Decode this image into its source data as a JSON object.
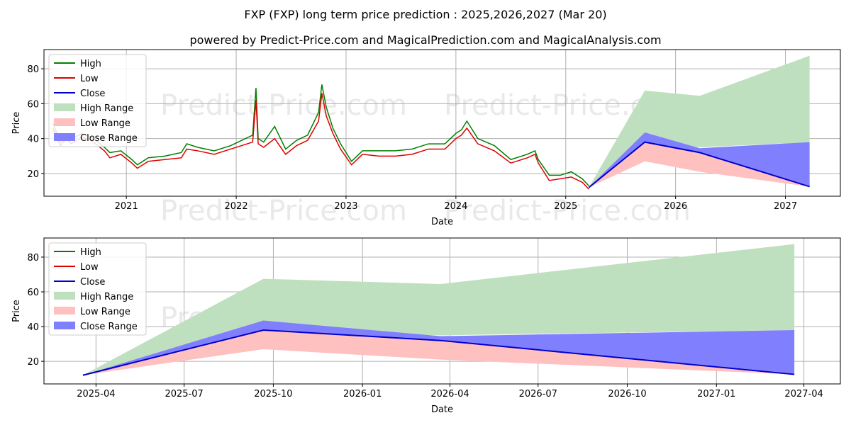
{
  "title": "FXP (FXP) long term price prediction : 2025,2026,2027 (Mar 20)",
  "subtitle": "powered by Predict-Price.com and MagicalPrediction.com and MagicalAnalysis.com",
  "watermark": "Predict-Price.com",
  "colors": {
    "high": "#008000",
    "low": "#e00000",
    "close": "#0000cc",
    "high_range": "#bfe0bf",
    "low_range": "#ffc0c0",
    "close_range": "#8080ff",
    "grid": "#b0b0b0"
  },
  "chart_data": [
    {
      "type": "line",
      "name": "history-and-forecast",
      "xlabel": "Date",
      "ylabel": "Price",
      "xlim": [
        2020.25,
        2027.5
      ],
      "ylim": [
        7,
        91
      ],
      "x_ticks": [
        2021,
        2022,
        2023,
        2024,
        2025,
        2026,
        2027
      ],
      "x_tick_labels": [
        "2021",
        "2022",
        "2023",
        "2024",
        "2025",
        "2026",
        "2027"
      ],
      "y_ticks": [
        20,
        40,
        60,
        80
      ],
      "y_tick_labels": [
        "20",
        "40",
        "60",
        "80"
      ],
      "grid": true,
      "legend_position": "upper-left",
      "legend": [
        "High",
        "Low",
        "Close",
        "High Range",
        "Low Range",
        "Close Range"
      ],
      "history": {
        "x": [
          2020.33,
          2020.4,
          2020.45,
          2020.5,
          2020.6,
          2020.7,
          2020.8,
          2020.85,
          2020.95,
          2021.05,
          2021.1,
          2021.2,
          2021.35,
          2021.5,
          2021.55,
          2021.65,
          2021.8,
          2021.95,
          2022.05,
          2022.15,
          2022.18,
          2022.2,
          2022.25,
          2022.35,
          2022.45,
          2022.55,
          2022.65,
          2022.75,
          2022.78,
          2022.82,
          2022.88,
          2022.95,
          2023.05,
          2023.15,
          2023.3,
          2023.45,
          2023.6,
          2023.75,
          2023.9,
          2024.0,
          2024.05,
          2024.1,
          2024.2,
          2024.35,
          2024.5,
          2024.65,
          2024.72,
          2024.75,
          2024.85,
          2024.95,
          2025.05,
          2025.15,
          2025.21
        ],
        "low": [
          46,
          36,
          40,
          37,
          41,
          38,
          33,
          29,
          31,
          26,
          23,
          27,
          28,
          29,
          34,
          33,
          31,
          34,
          36,
          38,
          62,
          37,
          35,
          40,
          31,
          36,
          39,
          50,
          66,
          53,
          43,
          34,
          25,
          31,
          30,
          30,
          31,
          34,
          34,
          40,
          42,
          46,
          37,
          33,
          26,
          29,
          31,
          26,
          16,
          17,
          18,
          15,
          11
        ],
        "high": [
          49,
          38,
          43,
          40,
          43,
          40,
          35,
          32,
          33,
          28,
          25,
          29,
          30,
          32,
          37,
          35,
          33,
          36,
          39,
          42,
          69,
          40,
          38,
          47,
          34,
          39,
          42,
          55,
          71,
          58,
          46,
          37,
          27,
          33,
          33,
          33,
          34,
          37,
          37,
          43,
          45,
          50,
          40,
          36,
          28,
          31,
          33,
          28,
          19,
          19,
          21,
          17,
          13
        ]
      },
      "forecast_x": [
        2025.21,
        2025.72,
        2026.22,
        2027.22
      ],
      "high_range": {
        "upper": [
          12,
          67.5,
          64.5,
          87.5
        ],
        "lower": [
          12,
          38,
          35,
          38
        ]
      },
      "low_range": {
        "upper": [
          12,
          38,
          32,
          13
        ],
        "lower": [
          12,
          27,
          21,
          12.5
        ]
      },
      "close_range": {
        "upper": [
          12,
          43.5,
          34.5,
          38
        ],
        "lower": [
          12,
          38,
          32,
          13
        ]
      },
      "close": [
        12,
        38,
        32,
        12.5
      ]
    },
    {
      "type": "line",
      "name": "forecast-detail",
      "xlabel": "Date",
      "ylabel": "Price",
      "xlim": [
        2025.1,
        2027.35
      ],
      "ylim": [
        7,
        91
      ],
      "x_ticks": [
        2025.247,
        2025.496,
        2025.748,
        2026.0,
        2026.247,
        2026.496,
        2026.748,
        2027.0,
        2027.247
      ],
      "x_tick_labels": [
        "2025-04",
        "2025-07",
        "2025-10",
        "2026-01",
        "2026-04",
        "2026-07",
        "2026-10",
        "2027-01",
        "2027-04"
      ],
      "y_ticks": [
        20,
        40,
        60,
        80
      ],
      "y_tick_labels": [
        "20",
        "40",
        "60",
        "80"
      ],
      "grid": true,
      "legend_position": "upper-left",
      "legend": [
        "High",
        "Low",
        "Close",
        "High Range",
        "Low Range",
        "Close Range"
      ],
      "forecast_x": [
        2025.21,
        2025.72,
        2026.22,
        2027.22
      ],
      "high_range": {
        "upper": [
          12,
          67.5,
          64.5,
          87.5
        ],
        "lower": [
          12,
          38,
          35,
          38
        ]
      },
      "low_range": {
        "upper": [
          12,
          38,
          32,
          13
        ],
        "lower": [
          12,
          27,
          21,
          12.5
        ]
      },
      "close_range": {
        "upper": [
          12,
          43.5,
          34.5,
          38
        ],
        "lower": [
          12,
          38,
          32,
          13
        ]
      },
      "close": [
        12,
        38,
        32,
        12.5
      ]
    }
  ]
}
